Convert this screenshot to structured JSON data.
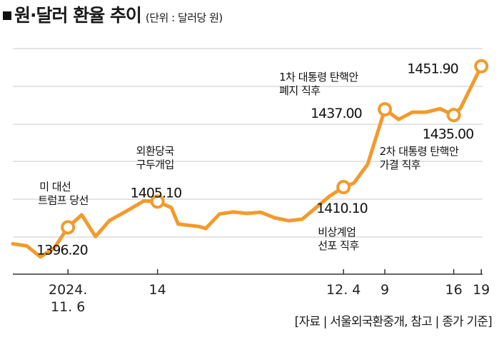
{
  "title": "원·달러 환율 추이",
  "unit": "(단위 : 달러당 원)",
  "source": "[자료 | 서울외국환중개, 참고 | 종가 기준]",
  "colors": {
    "line": "#f39a2b",
    "grid": "#c8c8c8",
    "axis": "#333333"
  },
  "chart_data": {
    "type": "line",
    "title": "원·달러 환율 추이",
    "unit": "달러당 원",
    "grid": true,
    "ylim": [
      1380,
      1458
    ],
    "xlim": [
      0,
      65
    ],
    "series": [
      {
        "values": [
          [
            0,
            1390.5
          ],
          [
            2,
            1389.8
          ],
          [
            4,
            1386.0
          ],
          [
            6,
            1389.0
          ],
          [
            8,
            1396.2
          ],
          [
            10,
            1400.5
          ],
          [
            12,
            1393.0
          ],
          [
            14,
            1398.5
          ],
          [
            17,
            1402.5
          ],
          [
            19,
            1405.3
          ],
          [
            21,
            1405.1
          ],
          [
            23,
            1403.0
          ],
          [
            24,
            1397.3
          ],
          [
            27,
            1396.5
          ],
          [
            28,
            1395.8
          ],
          [
            30,
            1400.8
          ],
          [
            32,
            1401.5
          ],
          [
            34,
            1401.0
          ],
          [
            36,
            1401.4
          ],
          [
            38,
            1399.5
          ],
          [
            40,
            1398.5
          ],
          [
            42,
            1399.0
          ],
          [
            44,
            1403.0
          ],
          [
            46,
            1407.0
          ],
          [
            48,
            1410.1
          ],
          [
            49.5,
            1411.5
          ],
          [
            51.5,
            1418.0
          ],
          [
            54,
            1437.0
          ],
          [
            56,
            1433.5
          ],
          [
            58,
            1436.0
          ],
          [
            60,
            1436.0
          ],
          [
            62,
            1437.2
          ],
          [
            64,
            1435.0
          ],
          [
            65,
            1437.5
          ],
          [
            68,
            1451.9
          ]
        ]
      }
    ],
    "x_ticks": [
      {
        "x": 8,
        "label": [
          "2024.",
          "11. 6"
        ]
      },
      {
        "x": 21,
        "label": [
          "14"
        ]
      },
      {
        "x": 48,
        "label": [
          "12. 4"
        ]
      },
      {
        "x": 54,
        "label": [
          "9"
        ]
      },
      {
        "x": 64,
        "label": [
          "16"
        ]
      },
      {
        "x": 68,
        "label": [
          "19"
        ]
      }
    ],
    "highlights": [
      {
        "x": 8,
        "y": 1396.2,
        "value": "1396.20",
        "event": [
          "미 대선",
          "트럼프 당선"
        ]
      },
      {
        "x": 21,
        "y": 1405.1,
        "value": "1405.10",
        "event": [
          "외환당국",
          "구두개입"
        ]
      },
      {
        "x": 48,
        "y": 1410.1,
        "value": "1410.10",
        "event": [
          "비상계엄",
          "선포 직후"
        ]
      },
      {
        "x": 54,
        "y": 1437.0,
        "value": "1437.00",
        "event": [
          "1차 대통령 탄핵안",
          "폐지 직후"
        ]
      },
      {
        "x": 64,
        "y": 1435.0,
        "value": "1435.00",
        "event": [
          "2차 대통령 탄핵안",
          "가결 직후"
        ]
      },
      {
        "x": 68,
        "y": 1451.9,
        "value": "1451.90",
        "event": []
      }
    ]
  }
}
